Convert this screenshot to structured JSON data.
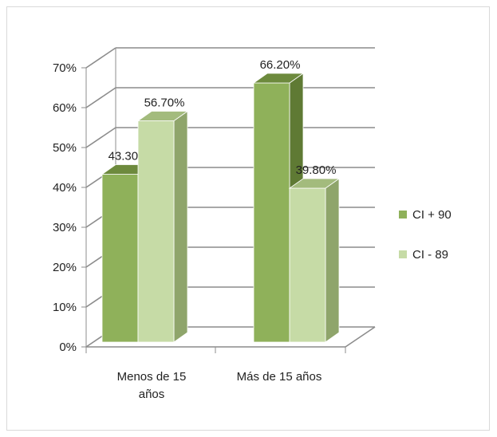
{
  "chart_data": {
    "type": "bar",
    "style": "3d-clustered-column",
    "categories": [
      [
        "Menos de 15",
        "años"
      ],
      [
        "Más de 15 años"
      ]
    ],
    "series": [
      {
        "name": "CI + 90",
        "values": [
          43.3,
          66.2
        ],
        "color": "#8fb15a",
        "top_color": "#6d8a3d",
        "side_color": "#5f7a34"
      },
      {
        "name": "CI - 89",
        "values": [
          56.7,
          39.8
        ],
        "color": "#c6dba6",
        "top_color": "#a3bb7d",
        "side_color": "#8fa56b"
      }
    ],
    "data_labels": [
      [
        "43.30%",
        "66.20%"
      ],
      [
        "56.70%",
        "39.80%"
      ]
    ],
    "yticks": [
      "0%",
      "10%",
      "20%",
      "30%",
      "40%",
      "50%",
      "60%",
      "70%"
    ],
    "ylim": [
      0,
      70
    ],
    "grid": true,
    "legend_position": "right"
  }
}
